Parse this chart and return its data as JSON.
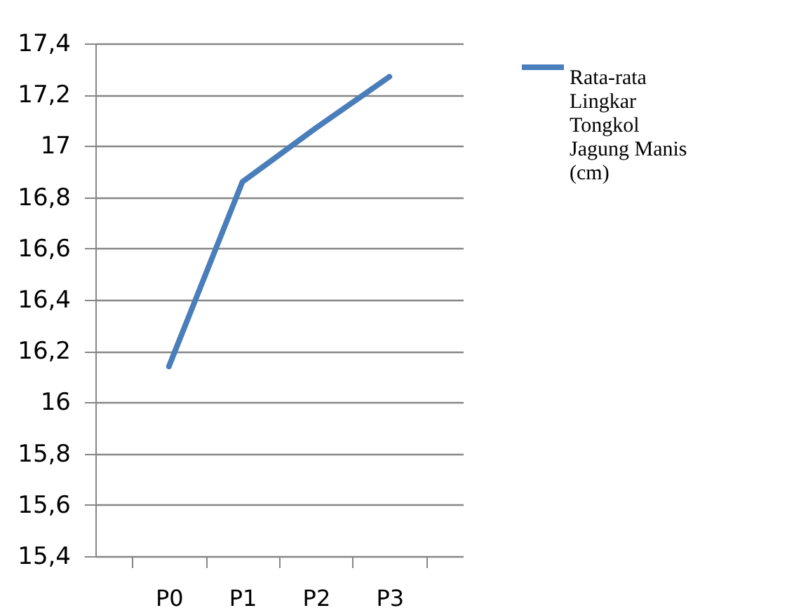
{
  "chart_data": {
    "type": "line",
    "categories": [
      "P0",
      "P1",
      "P2",
      "P3"
    ],
    "series": [
      {
        "name": "Rata-rata Lingkar Tongkol Jagung Manis (cm)",
        "color": "#4a7ebb",
        "values": [
          16.14,
          16.86,
          17.07,
          17.27
        ]
      }
    ],
    "ylim": [
      15.4,
      17.4
    ],
    "yticks": [
      {
        "value": 15.4,
        "label": "15,4"
      },
      {
        "value": 15.6,
        "label": "15,6"
      },
      {
        "value": 15.8,
        "label": "15,8"
      },
      16,
      {
        "value": 16.2,
        "label": "16,2"
      },
      {
        "value": 16.4,
        "label": "16,4"
      },
      {
        "value": 16.6,
        "label": "16,6"
      },
      {
        "value": 16.8,
        "label": "16,8"
      },
      17,
      {
        "value": 17.2,
        "label": "17,2"
      },
      {
        "value": 17.4,
        "label": "17,4"
      }
    ],
    "grid": "y",
    "legend": "right",
    "marker": "none",
    "line_style": "solid"
  }
}
